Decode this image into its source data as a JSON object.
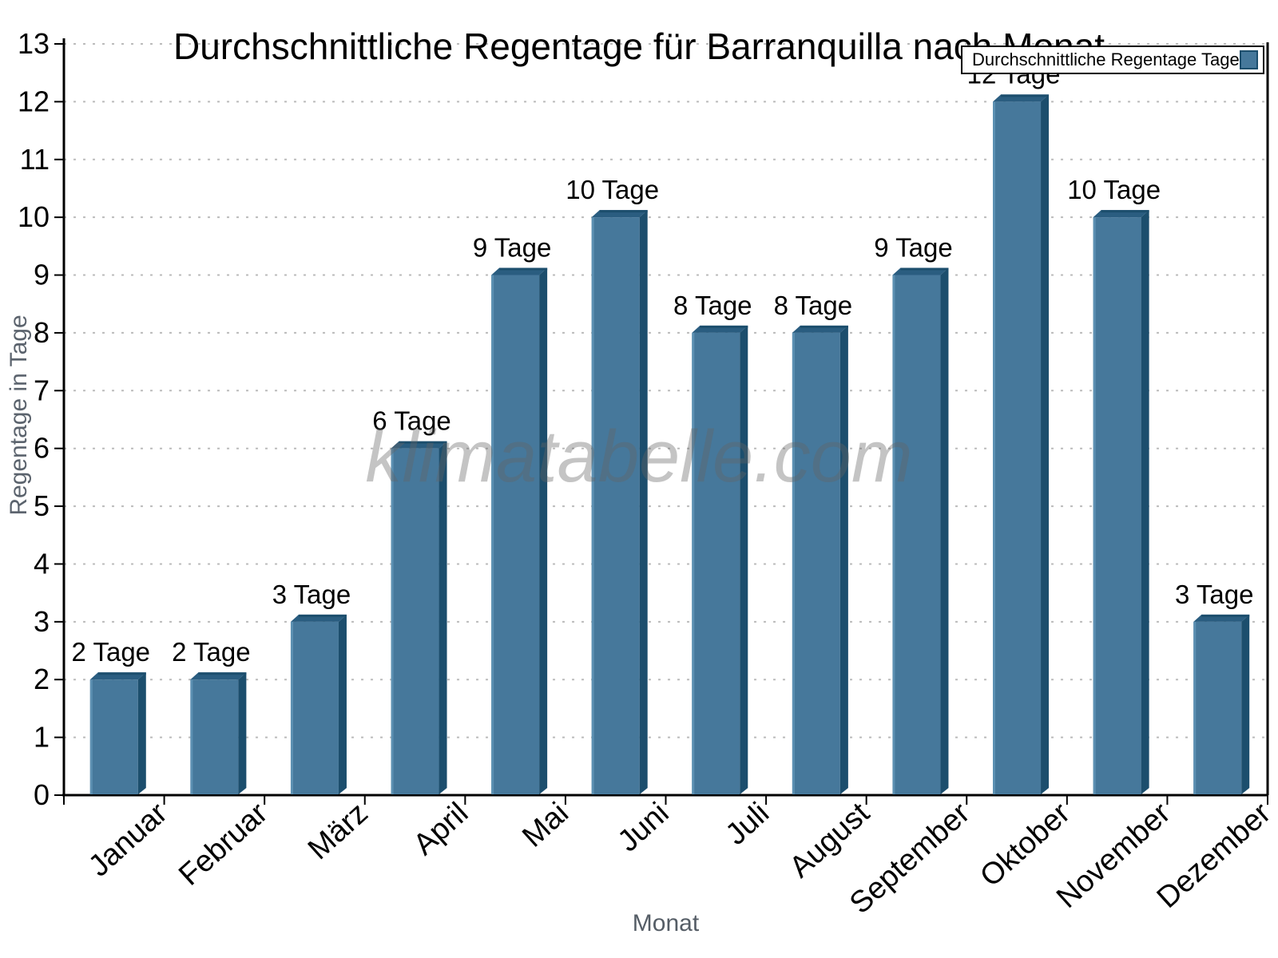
{
  "title": "Durchschnittliche Regentage für Barranquilla nach Monat",
  "watermark": "klimatabelle.com",
  "legend": {
    "label": "Durchschnittliche Regentage Tage",
    "position": "top-right"
  },
  "chart_data": {
    "type": "bar",
    "title": "Durchschnittliche Regentage für Barranquilla nach Monat",
    "categories": [
      "Januar",
      "Februar",
      "März",
      "April",
      "Mai",
      "Juni",
      "Juli",
      "August",
      "September",
      "Oktober",
      "November",
      "Dezember"
    ],
    "series": [
      {
        "name": "Durchschnittliche Regentage Tage",
        "values": [
          2,
          2,
          3,
          6,
          9,
          10,
          8,
          8,
          9,
          12,
          10,
          3
        ]
      }
    ],
    "value_label_suffix": " Tage",
    "value_labels": [
      "2 Tage",
      "2 Tage",
      "3 Tage",
      "6 Tage",
      "9 Tage",
      "10 Tage",
      "8 Tage",
      "8 Tage",
      "9 Tage",
      "12 Tage",
      "10 Tage",
      "3 Tage"
    ],
    "xlabel": "Monat",
    "ylabel": "Regentage in Tage",
    "ylim": [
      0,
      13
    ],
    "ytick_step": 1,
    "yticks": [
      0,
      1,
      2,
      3,
      4,
      5,
      6,
      7,
      8,
      9,
      10,
      11,
      12,
      13
    ],
    "grid": "horizontal-dotted",
    "legend_position": "top-right"
  },
  "colors": {
    "bar_front": "#46789B",
    "bar_top": "#2A5D80",
    "bar_side": "#1C4E6D",
    "bar_highlight": "#5C90B2",
    "axis": "#000000",
    "grid": "#BBBBBB",
    "tick_label": "#000000",
    "axis_title_gray": "#5B636D",
    "watermark_gray": "#646464",
    "background": "#FFFFFF"
  }
}
